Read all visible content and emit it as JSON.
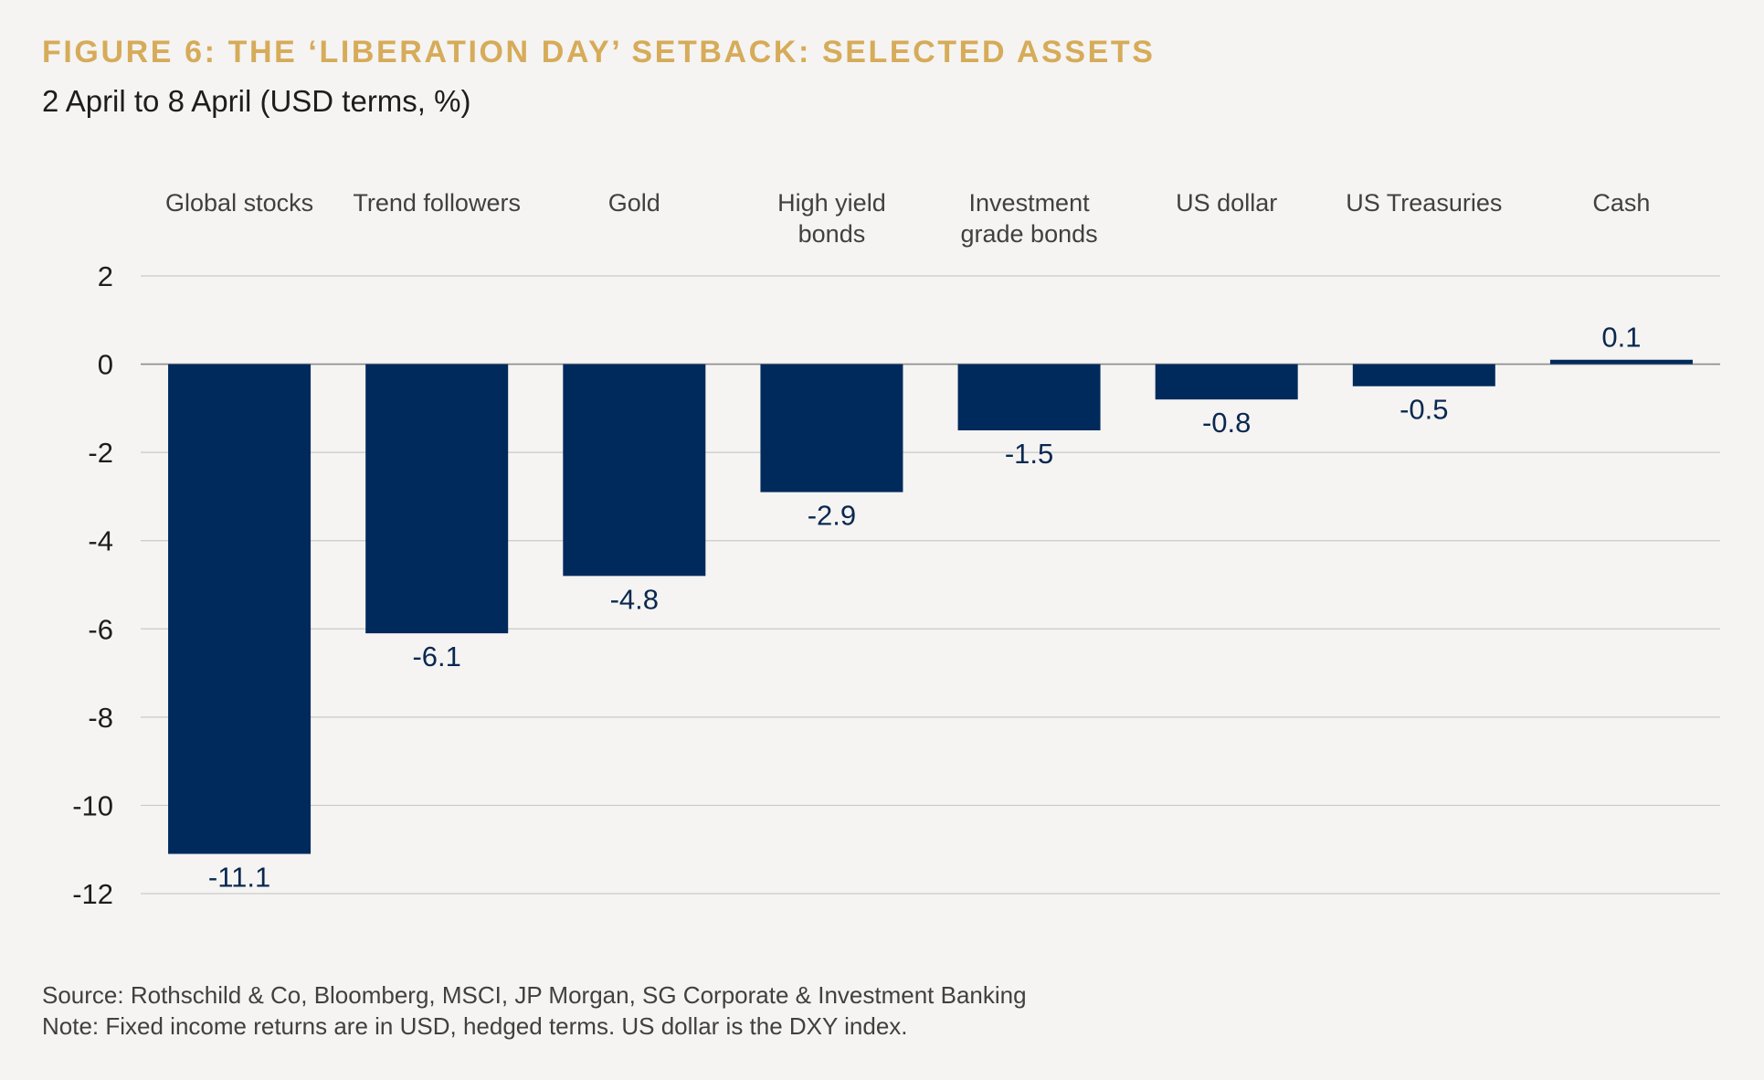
{
  "header": {
    "title": "FIGURE 6: THE ‘LIBERATION DAY’ SETBACK: SELECTED ASSETS",
    "subtitle": "2 April to 8 April (USD terms, %)"
  },
  "chart_data": {
    "type": "bar",
    "title": "FIGURE 6: THE ‘LIBERATION DAY’ SETBACK: SELECTED ASSETS",
    "subtitle": "2 April to 8 April (USD terms, %)",
    "categories": [
      [
        "Global stocks"
      ],
      [
        "Trend followers"
      ],
      [
        "Gold"
      ],
      [
        "High yield",
        "bonds"
      ],
      [
        "Investment",
        "grade bonds"
      ],
      [
        "US dollar"
      ],
      [
        "US Treasuries"
      ],
      [
        "Cash"
      ]
    ],
    "values": [
      -11.1,
      -6.1,
      -4.8,
      -2.9,
      -1.5,
      -0.8,
      -0.5,
      0.1
    ],
    "value_labels": [
      "-11.1",
      "-6.1",
      "-4.8",
      "-2.9",
      "-1.5",
      "-0.8",
      "-0.5",
      "0.1"
    ],
    "ylim": [
      -12,
      2
    ],
    "yticks": [
      2,
      0,
      -2,
      -4,
      -6,
      -8,
      -10,
      -12
    ],
    "xlabel": "",
    "ylabel": "",
    "category_axis_position": "top",
    "grid": true,
    "legend": "none",
    "colors": {
      "bar": "#002a5c",
      "value_label": "#0a2850",
      "gridline": "#c9c9c9",
      "zero_line": "#8c8c8c",
      "title": "#d6ab59"
    }
  },
  "footer": {
    "source": "Source: Rothschild & Co, Bloomberg, MSCI, JP Morgan, SG Corporate & Investment Banking",
    "note": "Note: Fixed income returns are in USD, hedged terms. US dollar is the DXY index."
  }
}
